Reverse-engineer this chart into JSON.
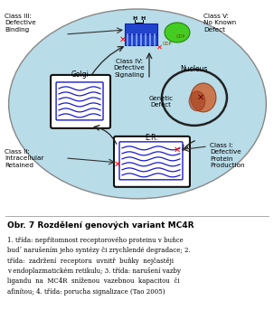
{
  "fig_width": 3.03,
  "fig_height": 3.43,
  "dpi": 100,
  "bg_color": "#ffffff",
  "cell_color": "#b8dce8",
  "title": "Obr. 7 Rozdělení genových variant MC4R",
  "caption_line1": "1. třída: nepřítomnost receptorového proteinu v buňce",
  "caption_line2": "budʼ narušením jeho syntézy či zrychlendé degradace; 2.",
  "caption_line3": "třída:  zadržení  receptoru  uvnitř  buňky  nejčastěji",
  "caption_line4": "v endoplazmatickém retikulu; 3. třída: narušení vazby",
  "caption_line5": "ligandu  na  MC4R  sníženou  vazebnou  kapacitou  či",
  "caption_line6": "afinítou; 4. třída: porucha signalizace (Tao 2005)",
  "class3_label": "Class III:\nDefective\nBinding",
  "class5_label": "Class V:\nNo Known\nDefect",
  "class4_label": "Class IV:\nDefective\nSignaling",
  "class1_label": "Class I:\nDefective\nProtein\nProduction",
  "class2_label": "Class II:\nIntracellular\nRetained",
  "golgi_label": "Golgi",
  "er_label": "E.R.",
  "nucleus_label": "Nucleus",
  "genetic_label": "Genetic\nDefect"
}
